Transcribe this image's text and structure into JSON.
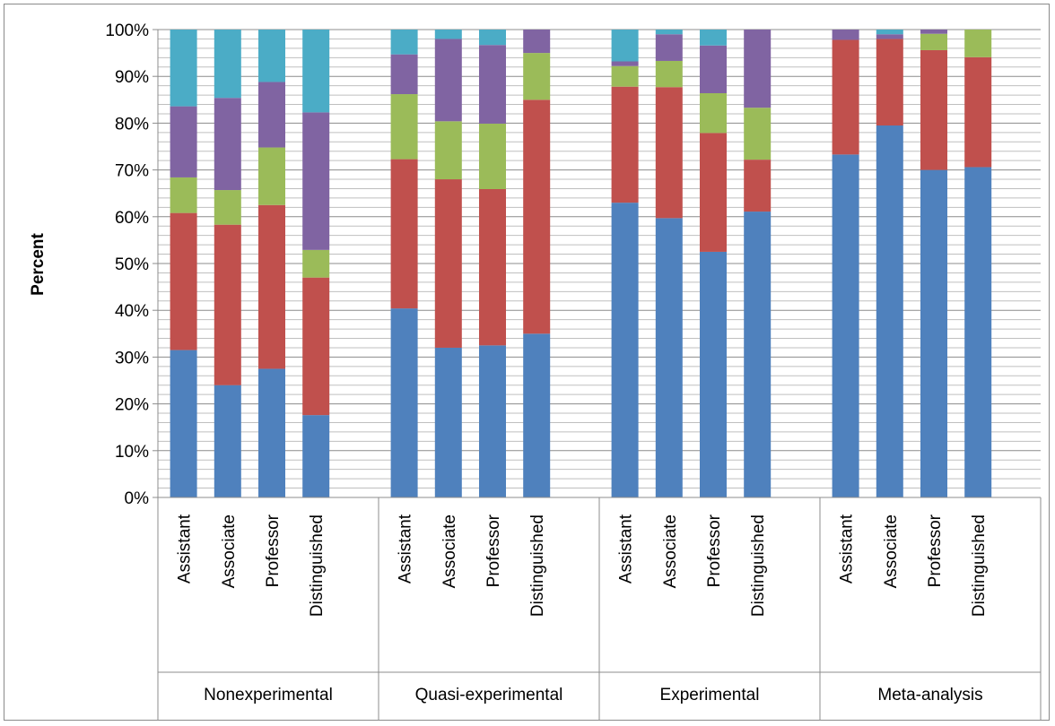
{
  "chart_data": {
    "type": "bar",
    "stacked": "percent",
    "ylabel": "Percent",
    "ylim": [
      0,
      100
    ],
    "yticks": [
      "0%",
      "10%",
      "20%",
      "30%",
      "40%",
      "50%",
      "60%",
      "70%",
      "80%",
      "90%",
      "100%"
    ],
    "grid": "horizontal minor gridlines every 2%",
    "legend": "none",
    "groups": [
      {
        "name": "Nonexperimental",
        "categories": [
          "Assistant",
          "Associate",
          "Professor",
          "Distinguished"
        ],
        "stacks": [
          [
            31.5,
            29.3,
            7.6,
            15.2,
            16.4
          ],
          [
            24.0,
            34.3,
            7.4,
            19.7,
            14.6
          ],
          [
            27.5,
            35.0,
            12.3,
            14.0,
            11.2
          ],
          [
            17.6,
            29.4,
            5.9,
            29.4,
            17.7
          ]
        ]
      },
      {
        "name": "Quasi-experimental",
        "categories": [
          "Assistant",
          "Associate",
          "Professor",
          "Distinguished"
        ],
        "stacks": [
          [
            40.4,
            31.9,
            13.9,
            8.5,
            5.3
          ],
          [
            32.0,
            36.0,
            12.4,
            17.6,
            2.0
          ],
          [
            32.5,
            33.4,
            14.0,
            16.8,
            3.3
          ],
          [
            35.0,
            50.0,
            10.0,
            5.0,
            0.0
          ]
        ]
      },
      {
        "name": "Experimental",
        "categories": [
          "Assistant",
          "Associate",
          "Professor",
          "Distinguished"
        ],
        "stacks": [
          [
            63.0,
            24.8,
            4.4,
            1.0,
            6.8
          ],
          [
            59.7,
            28.0,
            5.6,
            5.7,
            1.0
          ],
          [
            52.5,
            25.4,
            8.5,
            10.2,
            3.4
          ],
          [
            61.1,
            11.1,
            11.1,
            16.7,
            0.0
          ]
        ]
      },
      {
        "name": "Meta-analysis",
        "categories": [
          "Assistant",
          "Associate",
          "Professor",
          "Distinguished"
        ],
        "stacks": [
          [
            73.3,
            24.5,
            0.0,
            2.2,
            0.0
          ],
          [
            79.5,
            18.5,
            0.0,
            1.0,
            1.0
          ],
          [
            70.0,
            25.6,
            3.5,
            0.9,
            0.0
          ],
          [
            70.6,
            23.5,
            5.9,
            0.0,
            0.0
          ]
        ]
      }
    ],
    "series_colors": [
      "#4f81bd",
      "#c0504d",
      "#9bbb59",
      "#8064a2",
      "#4bacc6"
    ]
  }
}
